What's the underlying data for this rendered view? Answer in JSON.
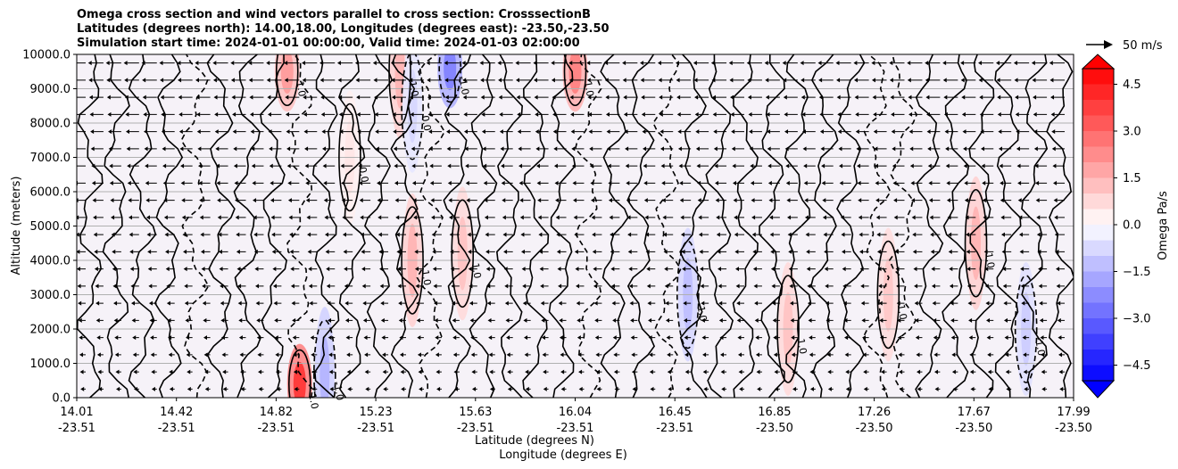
{
  "title_lines": [
    "Omega cross section and wind vectors parallel to cross section: CrosssectionB",
    "Latitudes (degrees north): 14.00,18.00, Longitudes (degrees east): -23.50,-23.50",
    "Simulation start time: 2024-01-01 00:00:00, Valid time: 2024-01-03 02:00:00"
  ],
  "chart_data": {
    "type": "heatmap",
    "ylabel": "Altitude (meters)",
    "xlabel_lines": [
      "Latitude (degrees N)",
      "Longitude (degrees E)"
    ],
    "ylim": [
      0,
      10000
    ],
    "y_ticks": [
      "0.0",
      "1000.0",
      "2000.0",
      "3000.0",
      "4000.0",
      "5000.0",
      "6000.0",
      "7000.0",
      "8000.0",
      "9000.0",
      "10000.0"
    ],
    "x_ticks": [
      {
        "lat": "14.01",
        "lon": "-23.51"
      },
      {
        "lat": "14.42",
        "lon": "-23.51"
      },
      {
        "lat": "14.82",
        "lon": "-23.51"
      },
      {
        "lat": "15.23",
        "lon": "-23.51"
      },
      {
        "lat": "15.63",
        "lon": "-23.51"
      },
      {
        "lat": "16.04",
        "lon": "-23.51"
      },
      {
        "lat": "16.45",
        "lon": "-23.51"
      },
      {
        "lat": "16.85",
        "lon": "-23.50"
      },
      {
        "lat": "17.26",
        "lon": "-23.50"
      },
      {
        "lat": "17.67",
        "lon": "-23.50"
      },
      {
        "lat": "17.99",
        "lon": "-23.50"
      }
    ],
    "horizontal_grid": true,
    "colorbar": {
      "label": "Omega Pa/s",
      "range": [
        -5,
        5
      ],
      "ticks": [
        "4.5",
        "3.0",
        "1.5",
        "0.0",
        "−1.5",
        "−3.0",
        "−4.5"
      ],
      "colormap": "bwr",
      "extend": "both"
    },
    "quiver_key": "50 m/s",
    "contour_levels": [
      -1.0,
      0.0,
      1.0
    ],
    "contour_label_texts": [
      "0.0",
      "1.0",
      "-1.0"
    ],
    "omega_features": [
      {
        "lat": 14.9,
        "alt": 400,
        "omega": 4.0
      },
      {
        "lat": 15.0,
        "alt": 700,
        "omega": -1.5
      },
      {
        "lat": 15.5,
        "alt": 9600,
        "omega": -2.5
      },
      {
        "lat": 15.3,
        "alt": 9500,
        "omega": 1.5
      },
      {
        "lat": 14.85,
        "alt": 9500,
        "omega": 2.0
      },
      {
        "lat": 16.0,
        "alt": 9500,
        "omega": 2.5
      },
      {
        "lat": 15.35,
        "alt": 4000,
        "omega": 1.5
      },
      {
        "lat": 15.55,
        "alt": 4200,
        "omega": 1.2
      },
      {
        "lat": 16.45,
        "alt": 3000,
        "omega": -1.3
      },
      {
        "lat": 17.6,
        "alt": 4500,
        "omega": 1.5
      },
      {
        "lat": 17.8,
        "alt": 2000,
        "omega": -1.0
      },
      {
        "lat": 16.85,
        "alt": 2000,
        "omega": 1.2
      },
      {
        "lat": 17.25,
        "alt": 3000,
        "omega": 1.1
      },
      {
        "lat": 15.1,
        "alt": 7000,
        "omega": 0.5
      },
      {
        "lat": 15.35,
        "alt": 8500,
        "omega": -0.8
      }
    ]
  },
  "colors": {
    "positive": "#ff0000",
    "negative": "#0000ff",
    "neutral": "#ffffff",
    "grid": "#b0b0b0"
  }
}
